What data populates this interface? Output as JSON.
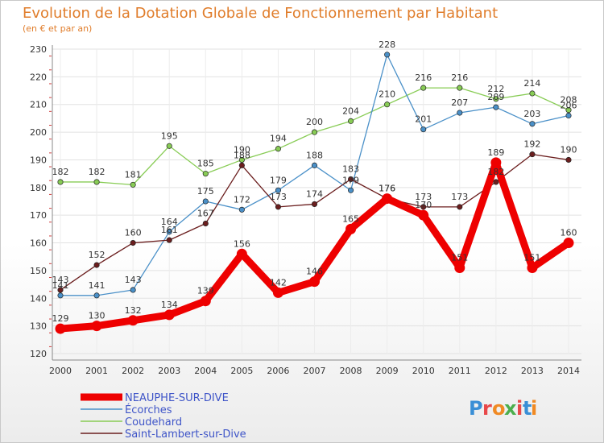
{
  "title": "Evolution de la Dotation Globale de Fonctionnement par Habitant",
  "subtitle": "(en € et par an)",
  "logo": "Proxiti",
  "chart_data": {
    "type": "line",
    "x": [
      2000,
      2001,
      2002,
      2003,
      2004,
      2005,
      2006,
      2007,
      2008,
      2009,
      2010,
      2011,
      2012,
      2013,
      2014
    ],
    "ylim": [
      120,
      230
    ],
    "yticks": [
      120,
      130,
      140,
      150,
      160,
      170,
      180,
      190,
      200,
      210,
      220,
      230
    ],
    "grid": true,
    "legend": "bottom-left",
    "series": [
      {
        "name": "Coudehard",
        "color": "#88cc55",
        "values": [
          182,
          182,
          181,
          195,
          185,
          190,
          194,
          200,
          204,
          210,
          216,
          216,
          212,
          214,
          208
        ]
      },
      {
        "name": "Écorches",
        "color": "#4a90c8",
        "values": [
          141,
          141,
          143,
          164,
          175,
          172,
          179,
          188,
          179,
          228,
          201,
          207,
          209,
          203,
          206
        ]
      },
      {
        "name": "Saint-Lambert-sur-Dive",
        "color": "#6b1e1e",
        "values": [
          143,
          152,
          160,
          161,
          167,
          188,
          173,
          174,
          183,
          176,
          173,
          173,
          182,
          192,
          190
        ]
      },
      {
        "name": "NEAUPHE-SUR-DIVE",
        "color": "#ee0000",
        "values": [
          129,
          130,
          132,
          134,
          139,
          156,
          142,
          146,
          165,
          176,
          170,
          151,
          189,
          151,
          160
        ]
      }
    ]
  }
}
